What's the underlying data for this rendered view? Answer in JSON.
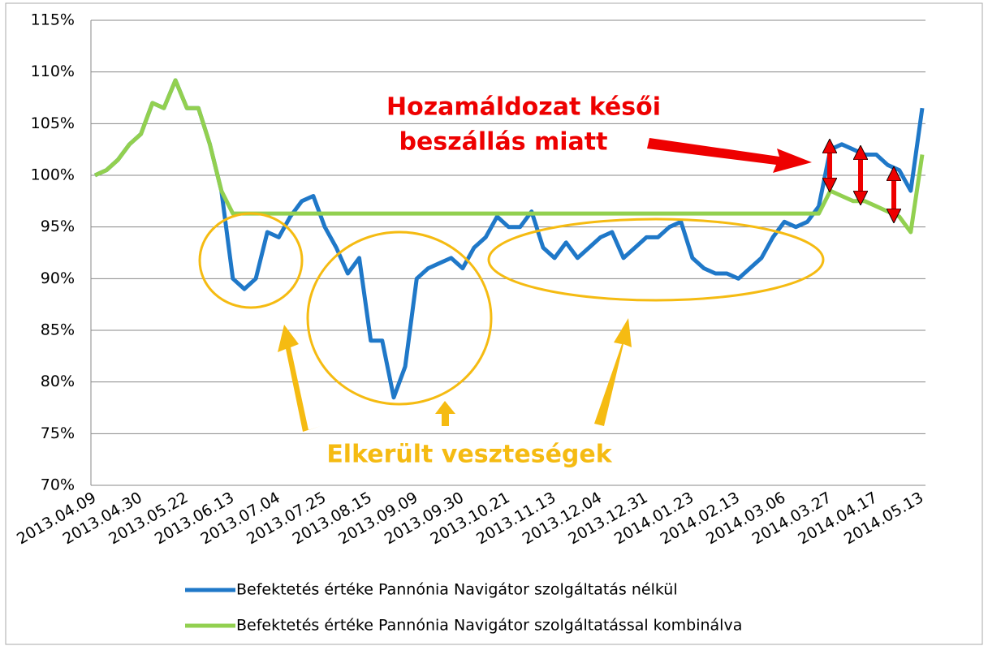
{
  "chart_data": {
    "type": "line",
    "categories": [
      "2013.04.09",
      null,
      null,
      null,
      "2013.04.30",
      null,
      null,
      null,
      "2013.05.22",
      null,
      null,
      null,
      "2013.06.13",
      null,
      null,
      null,
      "2013.07.04",
      null,
      null,
      null,
      "2013.07.25",
      null,
      null,
      null,
      "2013.08.15",
      null,
      null,
      null,
      "2013.09.09",
      null,
      null,
      null,
      "2013.09.30",
      null,
      null,
      null,
      "2013.10.21",
      null,
      null,
      null,
      "2013.11.13",
      null,
      null,
      null,
      "2013.12.04",
      null,
      null,
      null,
      "2013.12.31",
      null,
      null,
      null,
      "2014.01.23",
      null,
      null,
      null,
      "2014.02.13",
      null,
      null,
      null,
      "2014.03.06",
      null,
      null,
      null,
      "2014.03.27",
      null,
      null,
      null,
      "2014.04.17",
      null,
      null,
      null,
      "2014.05.13"
    ],
    "series": [
      {
        "name": "Befektetés értéke Pannónia Navigátor szolgáltatás nélkül",
        "color": "#1f78c8",
        "values": [
          100,
          100.5,
          101.5,
          103,
          104,
          107,
          106.5,
          109.2,
          106.5,
          106.5,
          103,
          98.5,
          90,
          89,
          90,
          94.5,
          94,
          96,
          97.5,
          98,
          95,
          93,
          90.5,
          92,
          84,
          84,
          78.5,
          81.5,
          90,
          91,
          91.5,
          92,
          91,
          93,
          94,
          96,
          95,
          95,
          96.5,
          93,
          92,
          93.5,
          92,
          93,
          94,
          94.5,
          92,
          93,
          94,
          94,
          95,
          95.5,
          92,
          91,
          90.5,
          90.5,
          90,
          91,
          92,
          94,
          95.5,
          95,
          95.5,
          97,
          102.5,
          103,
          102.5,
          102,
          102,
          101,
          100.5,
          98.5,
          106.5
        ]
      },
      {
        "name": "Befektetés értéke Pannónia Navigátor szolgáltatással kombinálva",
        "color": "#92d050",
        "values": [
          100,
          100.5,
          101.5,
          103,
          104,
          107,
          106.5,
          109.2,
          106.5,
          106.5,
          103,
          98.5,
          96.3,
          96.3,
          96.3,
          96.3,
          96.3,
          96.3,
          96.3,
          96.3,
          96.3,
          96.3,
          96.3,
          96.3,
          96.3,
          96.3,
          96.3,
          96.3,
          96.3,
          96.3,
          96.3,
          96.3,
          96.3,
          96.3,
          96.3,
          96.3,
          96.3,
          96.3,
          96.3,
          96.3,
          96.3,
          96.3,
          96.3,
          96.3,
          96.3,
          96.3,
          96.3,
          96.3,
          96.3,
          96.3,
          96.3,
          96.3,
          96.3,
          96.3,
          96.3,
          96.3,
          96.3,
          96.3,
          96.3,
          96.3,
          96.3,
          96.3,
          96.3,
          96.3,
          98.5,
          98,
          97.5,
          97.5,
          97,
          96.5,
          96,
          94.5,
          102
        ]
      }
    ],
    "ylim": [
      70,
      115
    ],
    "yticks": [
      {
        "value": 70,
        "label": "70%"
      },
      {
        "value": 75,
        "label": "75%"
      },
      {
        "value": 80,
        "label": "80%"
      },
      {
        "value": 85,
        "label": "85%"
      },
      {
        "value": 90,
        "label": "90%"
      },
      {
        "value": 95,
        "label": "95%"
      },
      {
        "value": 100,
        "label": "100%"
      },
      {
        "value": 105,
        "label": "105%"
      },
      {
        "value": 110,
        "label": "110%"
      },
      {
        "value": 115,
        "label": "115%"
      }
    ],
    "grid": true,
    "annotations": [
      "Hozamáldozat késői",
      "beszállás miatt",
      "Elkerült veszteségek"
    ]
  }
}
